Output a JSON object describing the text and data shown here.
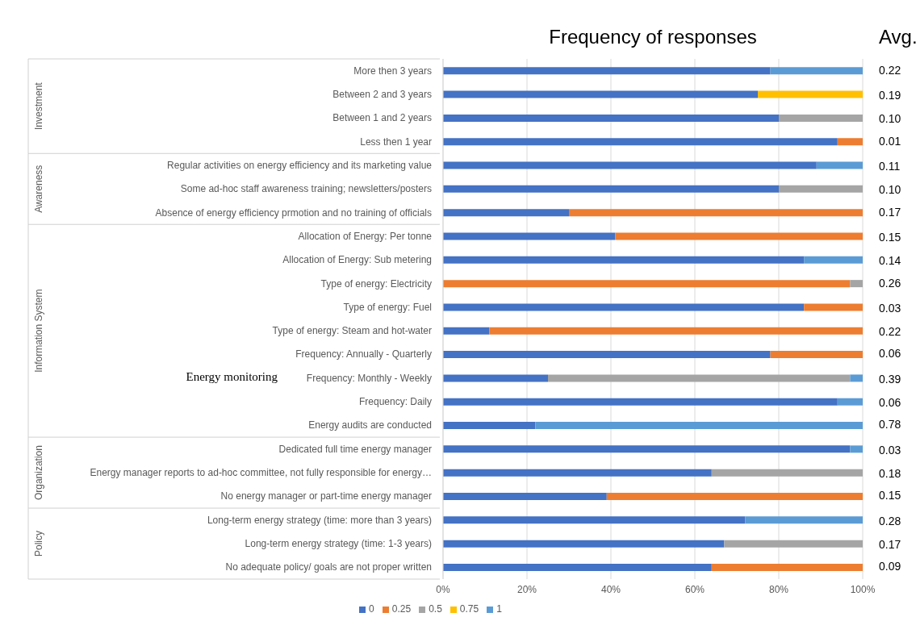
{
  "chart_data": {
    "type": "bar",
    "orientation": "horizontal",
    "stacked": true,
    "title": "Frequency of responses",
    "categories": [
      "More then 3 years",
      "Between 2 and 3 years",
      "Between 1 and 2 years",
      "Less then 1 year",
      "Regular activities on energy efficiency and its marketing value",
      "Some ad-hoc staff awareness training; newsletters/posters",
      "Absence of energy efficiency prmotion and no training of officials",
      "Allocation of Energy: Per tonne",
      "Allocation of Energy: Sub metering",
      "Type of energy: Electricity",
      "Type of energy: Fuel",
      "Type of energy: Steam and hot-water",
      "Frequency: Annually - Quarterly",
      "Frequency: Monthly - Weekly",
      "Frequency: Daily",
      "Energy audits are conducted",
      "Dedicated full time energy manager",
      "Energy manager reports to ad-hoc committee, not fully responsible for energy…",
      "No energy manager or part-time energy manager",
      "Long-term energy strategy (time: more than 3 years)",
      "Long-term energy strategy (time: 1-3 years)",
      "No adequate policy/ goals are not proper written"
    ],
    "series": [
      {
        "name": "0",
        "color": "#4472c4",
        "values": [
          78,
          75,
          80,
          94,
          89,
          80,
          30,
          41,
          86,
          null,
          86,
          11,
          78,
          25,
          94,
          22,
          97,
          64,
          39,
          72,
          67,
          64
        ]
      },
      {
        "name": "0.25",
        "color": "#ed7d31",
        "values": [
          null,
          null,
          null,
          6,
          null,
          null,
          70,
          59,
          null,
          97,
          14,
          89,
          22,
          null,
          null,
          null,
          null,
          null,
          61,
          null,
          null,
          36
        ]
      },
      {
        "name": "0.5",
        "color": "#a5a5a5",
        "values": [
          null,
          null,
          20,
          null,
          null,
          20,
          null,
          null,
          null,
          3,
          null,
          null,
          null,
          72,
          null,
          null,
          null,
          36,
          null,
          null,
          33,
          null
        ]
      },
      {
        "name": "0.75",
        "color": "#ffc000",
        "values": [
          null,
          25,
          null,
          null,
          null,
          null,
          null,
          null,
          null,
          null,
          null,
          null,
          null,
          null,
          null,
          null,
          null,
          null,
          null,
          null,
          null,
          null
        ]
      },
      {
        "name": "1",
        "color": "#5b9bd5",
        "values": [
          22,
          null,
          null,
          null,
          11,
          null,
          null,
          null,
          14,
          null,
          null,
          null,
          null,
          3,
          6,
          78,
          3,
          null,
          null,
          28,
          null,
          null
        ]
      }
    ],
    "xlim": [
      0,
      100
    ],
    "xticks": [
      {
        "value": 0,
        "label": "0%"
      },
      {
        "value": 20,
        "label": "20%"
      },
      {
        "value": 40,
        "label": "40%"
      },
      {
        "value": 60,
        "label": "60%"
      },
      {
        "value": 80,
        "label": "80%"
      },
      {
        "value": 100,
        "label": "100%"
      }
    ],
    "grid": "x",
    "legend": "bottom",
    "annotations": [
      "Avg.",
      "0.22",
      "0.19",
      "0.10",
      "0.01",
      "0.11",
      "0.10",
      "0.17",
      "0.15",
      "0.14",
      "0.26",
      "0.03",
      "0.22",
      "0.06",
      "0.39",
      "0.06",
      "0.78",
      "0.03",
      "0.18",
      "0.15",
      "0.28",
      "0.17",
      "0.09",
      "Energy monitoring",
      "Investment",
      "Awareness",
      "Information System",
      "Organization",
      "Policy"
    ]
  }
}
